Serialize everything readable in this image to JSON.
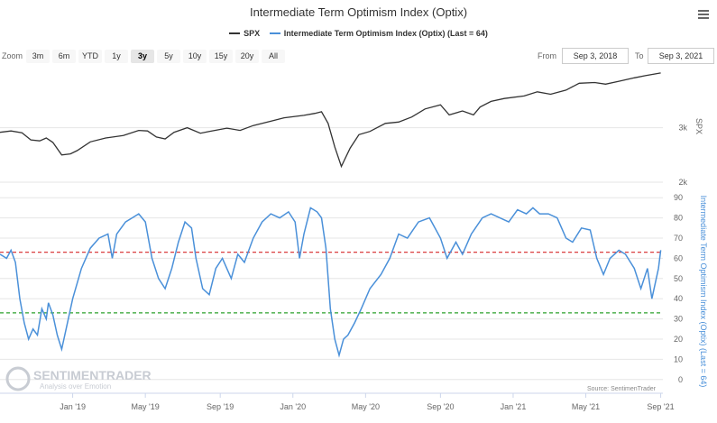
{
  "title": "Intermediate Term Optimism Index (Optix)",
  "legend": [
    {
      "label": "SPX",
      "color": "#333333"
    },
    {
      "label": "Intermediate Term Optimism Index (Optix) (Last = 64)",
      "color": "#4a90d9"
    }
  ],
  "zoom": {
    "label": "Zoom",
    "options": [
      "3m",
      "6m",
      "YTD",
      "1y",
      "3y",
      "5y",
      "10y",
      "15y",
      "20y",
      "All"
    ],
    "active": "3y"
  },
  "range": {
    "from_label": "From",
    "from_value": "Sep 3, 2018",
    "to_label": "To",
    "to_value": "Sep 3, 2021"
  },
  "watermark": {
    "name": "SENTIMENTRADER",
    "tagline": "Analysis over Emotion"
  },
  "source": "Source: SentimenTrader",
  "chart_data": [
    {
      "type": "line",
      "name": "SPX",
      "ylabel": "SPX",
      "yscale": "log",
      "ylim": [
        2000,
        4600
      ],
      "yticks": [
        {
          "v": 3000,
          "label": "3k"
        },
        {
          "v": 2000,
          "label": "2k"
        }
      ],
      "color": "#333333",
      "points": [
        [
          2018.67,
          2900
        ],
        [
          2018.72,
          2930
        ],
        [
          2018.77,
          2890
        ],
        [
          2018.81,
          2740
        ],
        [
          2018.85,
          2720
        ],
        [
          2018.88,
          2780
        ],
        [
          2018.91,
          2690
        ],
        [
          2018.95,
          2450
        ],
        [
          2018.99,
          2470
        ],
        [
          2019.02,
          2530
        ],
        [
          2019.08,
          2700
        ],
        [
          2019.15,
          2780
        ],
        [
          2019.23,
          2830
        ],
        [
          2019.3,
          2940
        ],
        [
          2019.34,
          2930
        ],
        [
          2019.38,
          2800
        ],
        [
          2019.42,
          2760
        ],
        [
          2019.46,
          2900
        ],
        [
          2019.52,
          3000
        ],
        [
          2019.58,
          2880
        ],
        [
          2019.62,
          2920
        ],
        [
          2019.7,
          2990
        ],
        [
          2019.76,
          2940
        ],
        [
          2019.82,
          3050
        ],
        [
          2019.9,
          3150
        ],
        [
          2019.96,
          3230
        ],
        [
          2020.05,
          3290
        ],
        [
          2020.1,
          3340
        ],
        [
          2020.13,
          3380
        ],
        [
          2020.16,
          3100
        ],
        [
          2020.19,
          2600
        ],
        [
          2020.22,
          2250
        ],
        [
          2020.26,
          2580
        ],
        [
          2020.3,
          2850
        ],
        [
          2020.35,
          2920
        ],
        [
          2020.42,
          3100
        ],
        [
          2020.48,
          3130
        ],
        [
          2020.54,
          3250
        ],
        [
          2020.6,
          3450
        ],
        [
          2020.67,
          3560
        ],
        [
          2020.71,
          3300
        ],
        [
          2020.77,
          3400
        ],
        [
          2020.82,
          3300
        ],
        [
          2020.85,
          3500
        ],
        [
          2020.9,
          3650
        ],
        [
          2020.96,
          3730
        ],
        [
          2021.05,
          3800
        ],
        [
          2021.11,
          3920
        ],
        [
          2021.17,
          3850
        ],
        [
          2021.24,
          3970
        ],
        [
          2021.3,
          4180
        ],
        [
          2021.37,
          4200
        ],
        [
          2021.42,
          4150
        ],
        [
          2021.48,
          4240
        ],
        [
          2021.55,
          4350
        ],
        [
          2021.6,
          4420
        ],
        [
          2021.67,
          4510
        ]
      ]
    },
    {
      "type": "line",
      "name": "Intermediate Term Optimism Index (Optix)",
      "ylabel": "Intermediate Term Optimism Index (Optix) (Last = 64)",
      "ylim": [
        -5,
        95
      ],
      "yticks": [
        0,
        10,
        20,
        30,
        40,
        50,
        60,
        70,
        80,
        90
      ],
      "color": "#4a90d9",
      "reference_lines": [
        {
          "value": 63,
          "color": "#d62728",
          "style": "dashed"
        },
        {
          "value": 33,
          "color": "#2ca02c",
          "style": "dashed"
        }
      ],
      "points": [
        [
          2018.67,
          62
        ],
        [
          2018.7,
          60
        ],
        [
          2018.72,
          64
        ],
        [
          2018.74,
          58
        ],
        [
          2018.76,
          40
        ],
        [
          2018.78,
          28
        ],
        [
          2018.8,
          20
        ],
        [
          2018.82,
          25
        ],
        [
          2018.84,
          22
        ],
        [
          2018.86,
          35
        ],
        [
          2018.88,
          30
        ],
        [
          2018.89,
          38
        ],
        [
          2018.91,
          32
        ],
        [
          2018.93,
          22
        ],
        [
          2018.95,
          15
        ],
        [
          2018.97,
          25
        ],
        [
          2019.0,
          40
        ],
        [
          2019.04,
          55
        ],
        [
          2019.08,
          65
        ],
        [
          2019.12,
          70
        ],
        [
          2019.16,
          72
        ],
        [
          2019.18,
          60
        ],
        [
          2019.2,
          72
        ],
        [
          2019.24,
          78
        ],
        [
          2019.27,
          80
        ],
        [
          2019.3,
          82
        ],
        [
          2019.33,
          78
        ],
        [
          2019.36,
          60
        ],
        [
          2019.39,
          50
        ],
        [
          2019.42,
          45
        ],
        [
          2019.45,
          55
        ],
        [
          2019.48,
          68
        ],
        [
          2019.51,
          78
        ],
        [
          2019.54,
          75
        ],
        [
          2019.56,
          60
        ],
        [
          2019.59,
          45
        ],
        [
          2019.62,
          42
        ],
        [
          2019.65,
          55
        ],
        [
          2019.68,
          60
        ],
        [
          2019.72,
          50
        ],
        [
          2019.75,
          62
        ],
        [
          2019.78,
          58
        ],
        [
          2019.82,
          70
        ],
        [
          2019.86,
          78
        ],
        [
          2019.9,
          82
        ],
        [
          2019.94,
          80
        ],
        [
          2019.98,
          83
        ],
        [
          2020.01,
          78
        ],
        [
          2020.03,
          60
        ],
        [
          2020.05,
          72
        ],
        [
          2020.08,
          85
        ],
        [
          2020.11,
          83
        ],
        [
          2020.13,
          80
        ],
        [
          2020.15,
          65
        ],
        [
          2020.17,
          35
        ],
        [
          2020.19,
          20
        ],
        [
          2020.21,
          12
        ],
        [
          2020.23,
          20
        ],
        [
          2020.25,
          22
        ],
        [
          2020.28,
          28
        ],
        [
          2020.31,
          35
        ],
        [
          2020.35,
          45
        ],
        [
          2020.4,
          52
        ],
        [
          2020.44,
          60
        ],
        [
          2020.48,
          72
        ],
        [
          2020.52,
          70
        ],
        [
          2020.57,
          78
        ],
        [
          2020.62,
          80
        ],
        [
          2020.67,
          70
        ],
        [
          2020.7,
          60
        ],
        [
          2020.74,
          68
        ],
        [
          2020.77,
          62
        ],
        [
          2020.81,
          72
        ],
        [
          2020.86,
          80
        ],
        [
          2020.9,
          82
        ],
        [
          2020.94,
          80
        ],
        [
          2020.98,
          78
        ],
        [
          2021.02,
          84
        ],
        [
          2021.06,
          82
        ],
        [
          2021.09,
          85
        ],
        [
          2021.12,
          82
        ],
        [
          2021.16,
          82
        ],
        [
          2021.2,
          80
        ],
        [
          2021.24,
          70
        ],
        [
          2021.27,
          68
        ],
        [
          2021.31,
          75
        ],
        [
          2021.35,
          74
        ],
        [
          2021.38,
          60
        ],
        [
          2021.41,
          52
        ],
        [
          2021.44,
          60
        ],
        [
          2021.48,
          64
        ],
        [
          2021.51,
          62
        ],
        [
          2021.55,
          55
        ],
        [
          2021.58,
          45
        ],
        [
          2021.61,
          55
        ],
        [
          2021.63,
          40
        ],
        [
          2021.66,
          55
        ],
        [
          2021.67,
          64
        ]
      ]
    }
  ],
  "xaxis": {
    "range": [
      2018.67,
      2021.68
    ],
    "ticks": [
      {
        "v": 2019.0,
        "label": "Jan '19"
      },
      {
        "v": 2019.33,
        "label": "May '19"
      },
      {
        "v": 2019.67,
        "label": "Sep '19"
      },
      {
        "v": 2020.0,
        "label": "Jan '20"
      },
      {
        "v": 2020.33,
        "label": "May '20"
      },
      {
        "v": 2020.67,
        "label": "Sep '20"
      },
      {
        "v": 2021.0,
        "label": "Jan '21"
      },
      {
        "v": 2021.33,
        "label": "May '21"
      },
      {
        "v": 2021.67,
        "label": "Sep '21"
      }
    ]
  }
}
